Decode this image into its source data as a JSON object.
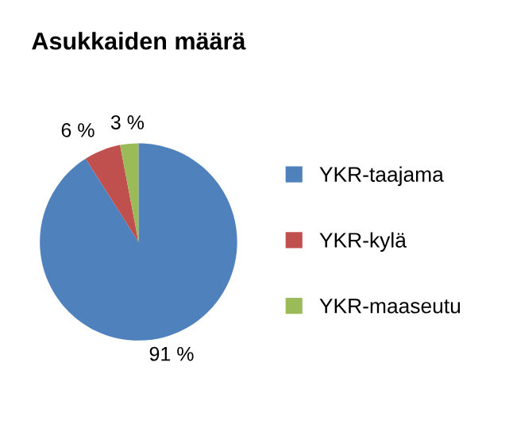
{
  "chart_data": {
    "type": "pie",
    "title": "Asukkaiden määrä",
    "categories": [
      "YKR-taajama",
      "YKR-kylä",
      "YKR-maaseutu"
    ],
    "values": [
      91,
      6,
      3
    ],
    "colors": [
      "#4f81bd",
      "#c0504d",
      "#9bbb59"
    ],
    "value_labels": [
      "91 %",
      "6 %",
      "3 %"
    ],
    "legend": "right"
  }
}
